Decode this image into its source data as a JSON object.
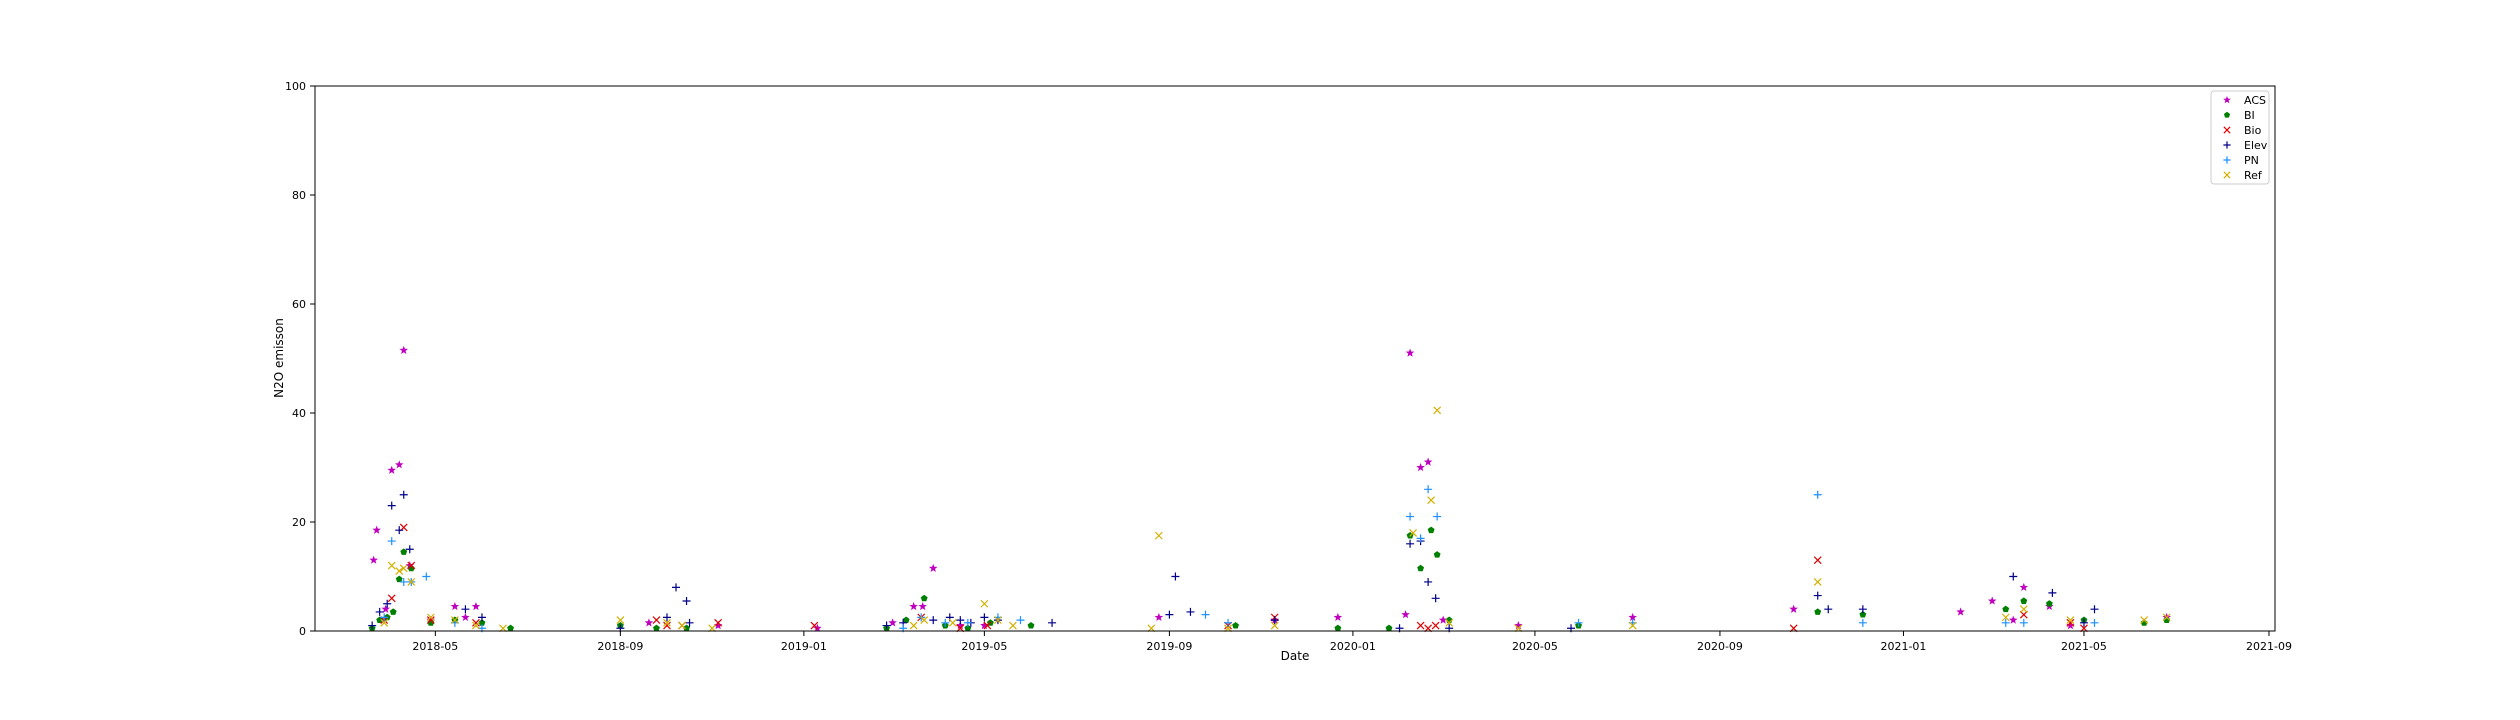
{
  "chart_data": {
    "type": "scatter",
    "xlabel": "Date",
    "ylabel": "N2O emisson",
    "xlim": [
      "2018-02-10",
      "2021-09-05"
    ],
    "ylim": [
      0,
      100
    ],
    "x_ticks": [
      {
        "date": "2018-05-01",
        "label": "2018-05"
      },
      {
        "date": "2018-09-01",
        "label": "2018-09"
      },
      {
        "date": "2019-01-01",
        "label": "2019-01"
      },
      {
        "date": "2019-05-01",
        "label": "2019-05"
      },
      {
        "date": "2019-09-01",
        "label": "2019-09"
      },
      {
        "date": "2020-01-01",
        "label": "2020-01"
      },
      {
        "date": "2020-05-01",
        "label": "2020-05"
      },
      {
        "date": "2020-09-01",
        "label": "2020-09"
      },
      {
        "date": "2021-01-01",
        "label": "2021-01"
      },
      {
        "date": "2021-05-01",
        "label": "2021-05"
      },
      {
        "date": "2021-09-01",
        "label": "2021-09"
      }
    ],
    "y_ticks": [
      0,
      20,
      40,
      60,
      80,
      100
    ],
    "grid": false,
    "legend_position": "top-right",
    "series": [
      {
        "name": "ACS",
        "marker": "star",
        "color": "#bf00bf",
        "points": [
          [
            "2018-03-21",
            13
          ],
          [
            "2018-03-23",
            18.5
          ],
          [
            "2018-03-29",
            4
          ],
          [
            "2018-04-02",
            29.5
          ],
          [
            "2018-04-07",
            30.5
          ],
          [
            "2018-04-10",
            51.5
          ],
          [
            "2018-04-14",
            12
          ],
          [
            "2018-04-28",
            2
          ],
          [
            "2018-05-14",
            4.5
          ],
          [
            "2018-05-21",
            2.5
          ],
          [
            "2018-05-28",
            4.5
          ],
          [
            "2018-09-20",
            1.5
          ],
          [
            "2018-11-05",
            1
          ],
          [
            "2019-01-10",
            0.5
          ],
          [
            "2019-03-01",
            1.5
          ],
          [
            "2019-03-15",
            4.5
          ],
          [
            "2019-03-21",
            4.5
          ],
          [
            "2019-03-28",
            11.5
          ],
          [
            "2019-04-15",
            1
          ],
          [
            "2019-05-01",
            1
          ],
          [
            "2019-08-25",
            2.5
          ],
          [
            "2019-11-10",
            2
          ],
          [
            "2019-12-22",
            2.5
          ],
          [
            "2020-02-05",
            3
          ],
          [
            "2020-02-08",
            51
          ],
          [
            "2020-02-15",
            30
          ],
          [
            "2020-02-20",
            31
          ],
          [
            "2020-03-01",
            2
          ],
          [
            "2020-04-20",
            1
          ],
          [
            "2020-07-05",
            2.5
          ],
          [
            "2020-10-20",
            4
          ],
          [
            "2021-02-08",
            3.5
          ],
          [
            "2021-03-01",
            5.5
          ],
          [
            "2021-03-15",
            2
          ],
          [
            "2021-03-22",
            8
          ],
          [
            "2021-04-08",
            4.5
          ],
          [
            "2021-04-22",
            1
          ],
          [
            "2021-06-25",
            2.5
          ]
        ]
      },
      {
        "name": "BI",
        "marker": "pentagon",
        "color": "#008000",
        "points": [
          [
            "2018-03-20",
            0.5
          ],
          [
            "2018-03-25",
            2
          ],
          [
            "2018-03-30",
            2.5
          ],
          [
            "2018-04-03",
            3.5
          ],
          [
            "2018-04-07",
            9.5
          ],
          [
            "2018-04-10",
            14.5
          ],
          [
            "2018-04-15",
            11.5
          ],
          [
            "2018-04-28",
            1.5
          ],
          [
            "2018-05-14",
            2
          ],
          [
            "2018-06-01",
            1.5
          ],
          [
            "2018-06-20",
            0.5
          ],
          [
            "2018-09-01",
            1
          ],
          [
            "2018-09-25",
            0.5
          ],
          [
            "2018-10-15",
            0.5
          ],
          [
            "2019-02-25",
            0.5
          ],
          [
            "2019-03-10",
            2
          ],
          [
            "2019-03-22",
            6
          ],
          [
            "2019-04-05",
            1
          ],
          [
            "2019-04-20",
            0.5
          ],
          [
            "2019-05-05",
            1.5
          ],
          [
            "2019-06-01",
            1
          ],
          [
            "2019-10-15",
            1
          ],
          [
            "2019-12-22",
            0.5
          ],
          [
            "2020-01-25",
            0.5
          ],
          [
            "2020-02-08",
            17.5
          ],
          [
            "2020-02-15",
            11.5
          ],
          [
            "2020-02-22",
            18.5
          ],
          [
            "2020-02-26",
            14
          ],
          [
            "2020-03-05",
            2
          ],
          [
            "2020-05-30",
            1
          ],
          [
            "2020-11-05",
            3.5
          ],
          [
            "2020-12-05",
            3
          ],
          [
            "2021-03-10",
            4
          ],
          [
            "2021-03-22",
            5.5
          ],
          [
            "2021-04-08",
            5
          ],
          [
            "2021-05-01",
            2
          ],
          [
            "2021-06-10",
            1.5
          ],
          [
            "2021-06-25",
            2
          ]
        ]
      },
      {
        "name": "Bio",
        "marker": "x",
        "color": "#e00000",
        "points": [
          [
            "2018-03-28",
            2
          ],
          [
            "2018-04-02",
            6
          ],
          [
            "2018-04-10",
            19
          ],
          [
            "2018-04-15",
            12
          ],
          [
            "2018-04-28",
            2
          ],
          [
            "2018-05-28",
            1.5
          ],
          [
            "2018-09-25",
            2
          ],
          [
            "2018-10-02",
            1
          ],
          [
            "2018-10-12",
            1
          ],
          [
            "2018-11-05",
            1.5
          ],
          [
            "2019-01-08",
            1
          ],
          [
            "2019-03-20",
            2.5
          ],
          [
            "2019-04-15",
            0.5
          ],
          [
            "2019-05-03",
            1
          ],
          [
            "2019-10-10",
            1
          ],
          [
            "2019-11-10",
            2.5
          ],
          [
            "2020-02-15",
            1
          ],
          [
            "2020-02-20",
            0.5
          ],
          [
            "2020-02-25",
            1
          ],
          [
            "2020-10-20",
            0.5
          ],
          [
            "2020-11-05",
            13
          ],
          [
            "2021-03-22",
            3
          ],
          [
            "2021-04-22",
            1.5
          ],
          [
            "2021-05-01",
            0.5
          ]
        ]
      },
      {
        "name": "Elev",
        "marker": "plus",
        "color": "#00008b",
        "points": [
          [
            "2018-03-20",
            1
          ],
          [
            "2018-03-25",
            3.5
          ],
          [
            "2018-03-30",
            5
          ],
          [
            "2018-04-02",
            23
          ],
          [
            "2018-04-07",
            18.5
          ],
          [
            "2018-04-10",
            25
          ],
          [
            "2018-04-14",
            15
          ],
          [
            "2018-05-21",
            4
          ],
          [
            "2018-06-01",
            2.5
          ],
          [
            "2018-09-01",
            0.5
          ],
          [
            "2018-10-02",
            2.5
          ],
          [
            "2018-10-08",
            8
          ],
          [
            "2018-10-15",
            5.5
          ],
          [
            "2018-10-17",
            1.5
          ],
          [
            "2019-02-25",
            1
          ],
          [
            "2019-03-08",
            1.5
          ],
          [
            "2019-03-28",
            2
          ],
          [
            "2019-04-08",
            2.5
          ],
          [
            "2019-04-15",
            2
          ],
          [
            "2019-04-22",
            1.5
          ],
          [
            "2019-05-01",
            2.5
          ],
          [
            "2019-05-10",
            2
          ],
          [
            "2019-06-15",
            1.5
          ],
          [
            "2019-09-01",
            3
          ],
          [
            "2019-09-05",
            10
          ],
          [
            "2019-09-15",
            3.5
          ],
          [
            "2019-11-10",
            2
          ],
          [
            "2020-02-01",
            0.5
          ],
          [
            "2020-02-08",
            16
          ],
          [
            "2020-02-15",
            16.5
          ],
          [
            "2020-02-20",
            9
          ],
          [
            "2020-02-25",
            6
          ],
          [
            "2020-03-05",
            0.5
          ],
          [
            "2020-05-25",
            0.5
          ],
          [
            "2020-11-05",
            6.5
          ],
          [
            "2020-11-12",
            4
          ],
          [
            "2020-12-05",
            4
          ],
          [
            "2021-03-15",
            10
          ],
          [
            "2021-04-10",
            7
          ],
          [
            "2021-05-01",
            1.5
          ],
          [
            "2021-05-08",
            4
          ]
        ]
      },
      {
        "name": "PN",
        "marker": "plus",
        "color": "#1e90ff",
        "points": [
          [
            "2018-03-28",
            2.5
          ],
          [
            "2018-04-02",
            16.5
          ],
          [
            "2018-04-10",
            9
          ],
          [
            "2018-04-15",
            9
          ],
          [
            "2018-04-25",
            10
          ],
          [
            "2018-05-14",
            1.5
          ],
          [
            "2018-06-01",
            0.5
          ],
          [
            "2019-03-08",
            0.5
          ],
          [
            "2019-03-20",
            2.5
          ],
          [
            "2019-04-05",
            1.5
          ],
          [
            "2019-04-20",
            1.5
          ],
          [
            "2019-05-10",
            2.5
          ],
          [
            "2019-05-25",
            2
          ],
          [
            "2019-09-25",
            3
          ],
          [
            "2019-10-10",
            1.5
          ],
          [
            "2020-02-08",
            21
          ],
          [
            "2020-02-15",
            17
          ],
          [
            "2020-02-20",
            26
          ],
          [
            "2020-02-26",
            21
          ],
          [
            "2020-05-30",
            1.5
          ],
          [
            "2020-07-05",
            1.5
          ],
          [
            "2020-11-05",
            25
          ],
          [
            "2020-12-05",
            1.5
          ],
          [
            "2021-03-10",
            1.5
          ],
          [
            "2021-03-22",
            1.5
          ],
          [
            "2021-05-08",
            1.5
          ]
        ]
      },
      {
        "name": "Ref",
        "marker": "x",
        "color": "#d4b000",
        "points": [
          [
            "2018-03-28",
            1.5
          ],
          [
            "2018-04-02",
            12
          ],
          [
            "2018-04-07",
            11
          ],
          [
            "2018-04-10",
            11.5
          ],
          [
            "2018-04-15",
            9
          ],
          [
            "2018-04-28",
            2.5
          ],
          [
            "2018-05-14",
            2
          ],
          [
            "2018-05-28",
            1
          ],
          [
            "2018-06-15",
            0.5
          ],
          [
            "2018-09-01",
            2
          ],
          [
            "2018-10-02",
            1.5
          ],
          [
            "2018-10-12",
            1
          ],
          [
            "2018-11-01",
            0.5
          ],
          [
            "2019-03-15",
            1
          ],
          [
            "2019-03-22",
            2
          ],
          [
            "2019-04-10",
            1.5
          ],
          [
            "2019-05-01",
            5
          ],
          [
            "2019-05-10",
            2
          ],
          [
            "2019-05-20",
            1
          ],
          [
            "2019-08-20",
            0.5
          ],
          [
            "2019-08-25",
            17.5
          ],
          [
            "2019-10-10",
            0.5
          ],
          [
            "2019-11-10",
            1
          ],
          [
            "2020-02-10",
            18
          ],
          [
            "2020-02-22",
            24
          ],
          [
            "2020-02-26",
            40.5
          ],
          [
            "2020-03-05",
            1.5
          ],
          [
            "2020-04-20",
            0.5
          ],
          [
            "2020-07-05",
            1
          ],
          [
            "2020-11-05",
            9
          ],
          [
            "2021-03-10",
            2.5
          ],
          [
            "2021-03-22",
            4
          ],
          [
            "2021-04-22",
            2
          ],
          [
            "2021-06-10",
            2
          ],
          [
            "2021-06-25",
            2.5
          ]
        ]
      }
    ]
  }
}
